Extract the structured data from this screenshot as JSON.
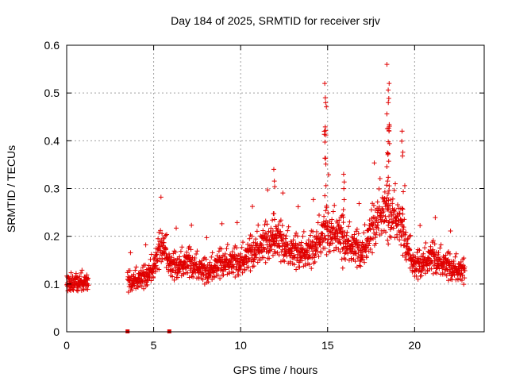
{
  "chart_data": {
    "type": "scatter",
    "title": "Day 184 of 2025, SRMTID for receiver srjv",
    "xlabel": "GPS time / hours",
    "ylabel": "SRMTID / TECUs",
    "xlim": [
      0,
      24
    ],
    "ylim": [
      0,
      0.6
    ],
    "xticks": [
      0,
      5,
      10,
      15,
      20
    ],
    "yticks": [
      0,
      0.1,
      0.2,
      0.3,
      0.4,
      0.5,
      0.6
    ],
    "ytick_labels": [
      "0",
      "0.1",
      "0.2",
      "0.3",
      "0.4",
      "0.5",
      "0.6"
    ],
    "grid": true,
    "marker": "+",
    "color": "#e00000",
    "series": [
      {
        "name": "SRMTID",
        "segments": [
          {
            "start": 0.0,
            "end": 1.25
          },
          {
            "start": 3.5,
            "end": 22.9
          }
        ],
        "level": [
          [
            0.0,
            0.1
          ],
          [
            1.0,
            0.1
          ],
          [
            3.5,
            0.1
          ],
          [
            4.5,
            0.11
          ],
          [
            5.0,
            0.13
          ],
          [
            5.5,
            0.18
          ],
          [
            6.0,
            0.13
          ],
          [
            7.0,
            0.14
          ],
          [
            8.0,
            0.12
          ],
          [
            9.0,
            0.14
          ],
          [
            10.0,
            0.14
          ],
          [
            11.0,
            0.17
          ],
          [
            12.0,
            0.19
          ],
          [
            13.0,
            0.16
          ],
          [
            14.0,
            0.16
          ],
          [
            14.8,
            0.2
          ],
          [
            15.5,
            0.2
          ],
          [
            16.0,
            0.18
          ],
          [
            17.0,
            0.16
          ],
          [
            18.0,
            0.24
          ],
          [
            18.5,
            0.24
          ],
          [
            19.0,
            0.23
          ],
          [
            20.0,
            0.13
          ],
          [
            21.0,
            0.15
          ],
          [
            22.0,
            0.13
          ],
          [
            22.9,
            0.12
          ]
        ],
        "peaks": [
          {
            "x": 14.85,
            "y": 0.52
          },
          {
            "x": 14.9,
            "y": 0.49
          },
          {
            "x": 18.45,
            "y": 0.56
          },
          {
            "x": 18.5,
            "y": 0.52
          },
          {
            "x": 18.5,
            "y": 0.48
          },
          {
            "x": 19.3,
            "y": 0.42
          },
          {
            "x": 11.9,
            "y": 0.34
          },
          {
            "x": 15.9,
            "y": 0.33
          }
        ],
        "zero_points": [
          {
            "x": 3.5,
            "y": 0
          },
          {
            "x": 5.9,
            "y": 0
          }
        ]
      }
    ]
  }
}
